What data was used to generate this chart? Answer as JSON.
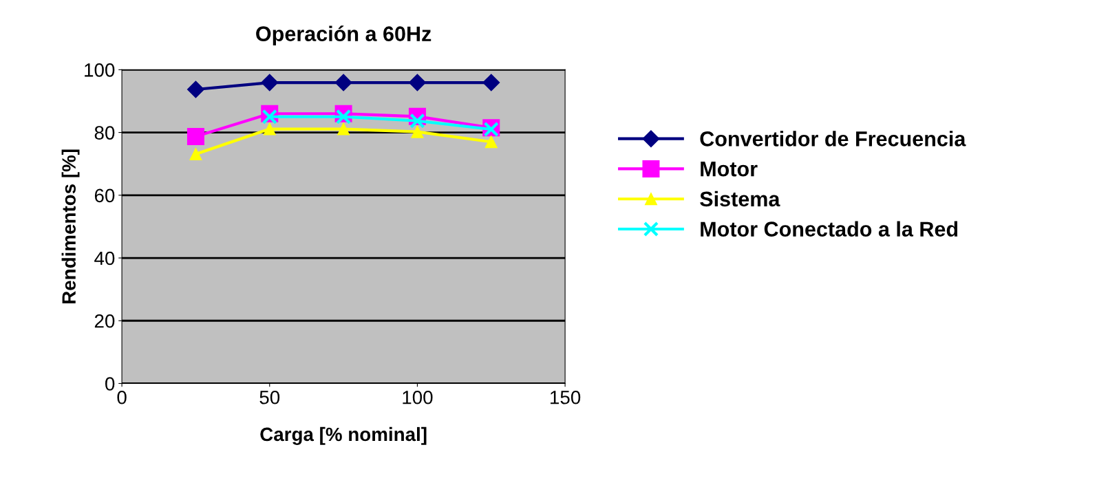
{
  "chart_data": {
    "type": "line",
    "title": "Operación a 60Hz",
    "xlabel": "Carga [% nominal]",
    "ylabel": "Rendimentos [%]",
    "x": [
      25,
      50,
      75,
      100,
      125
    ],
    "series": [
      {
        "name": "Convertidor de Frecuencia",
        "color": "#000080",
        "marker": "diamond",
        "values": [
          93.7,
          95.9,
          95.9,
          95.9,
          95.9
        ]
      },
      {
        "name": "Motor",
        "color": "#ff00ff",
        "marker": "square",
        "values": [
          78.7,
          86,
          86,
          85.1,
          81.5
        ]
      },
      {
        "name": "Sistema",
        "color": "#ffff00",
        "marker": "triangle",
        "values": [
          73.1,
          81.1,
          81.1,
          80.2,
          77
        ]
      },
      {
        "name": "Motor Conectado a la Red",
        "color": "#00ffff",
        "marker": "cross",
        "values": [
          null,
          85,
          85,
          83.7,
          81
        ]
      }
    ],
    "xlim": [
      0,
      150
    ],
    "xticks": [
      0,
      50,
      100,
      150
    ],
    "ylim": [
      0,
      100
    ],
    "yticks": [
      0,
      20,
      40,
      60,
      80,
      100
    ],
    "grid": "y",
    "legend": "right"
  }
}
